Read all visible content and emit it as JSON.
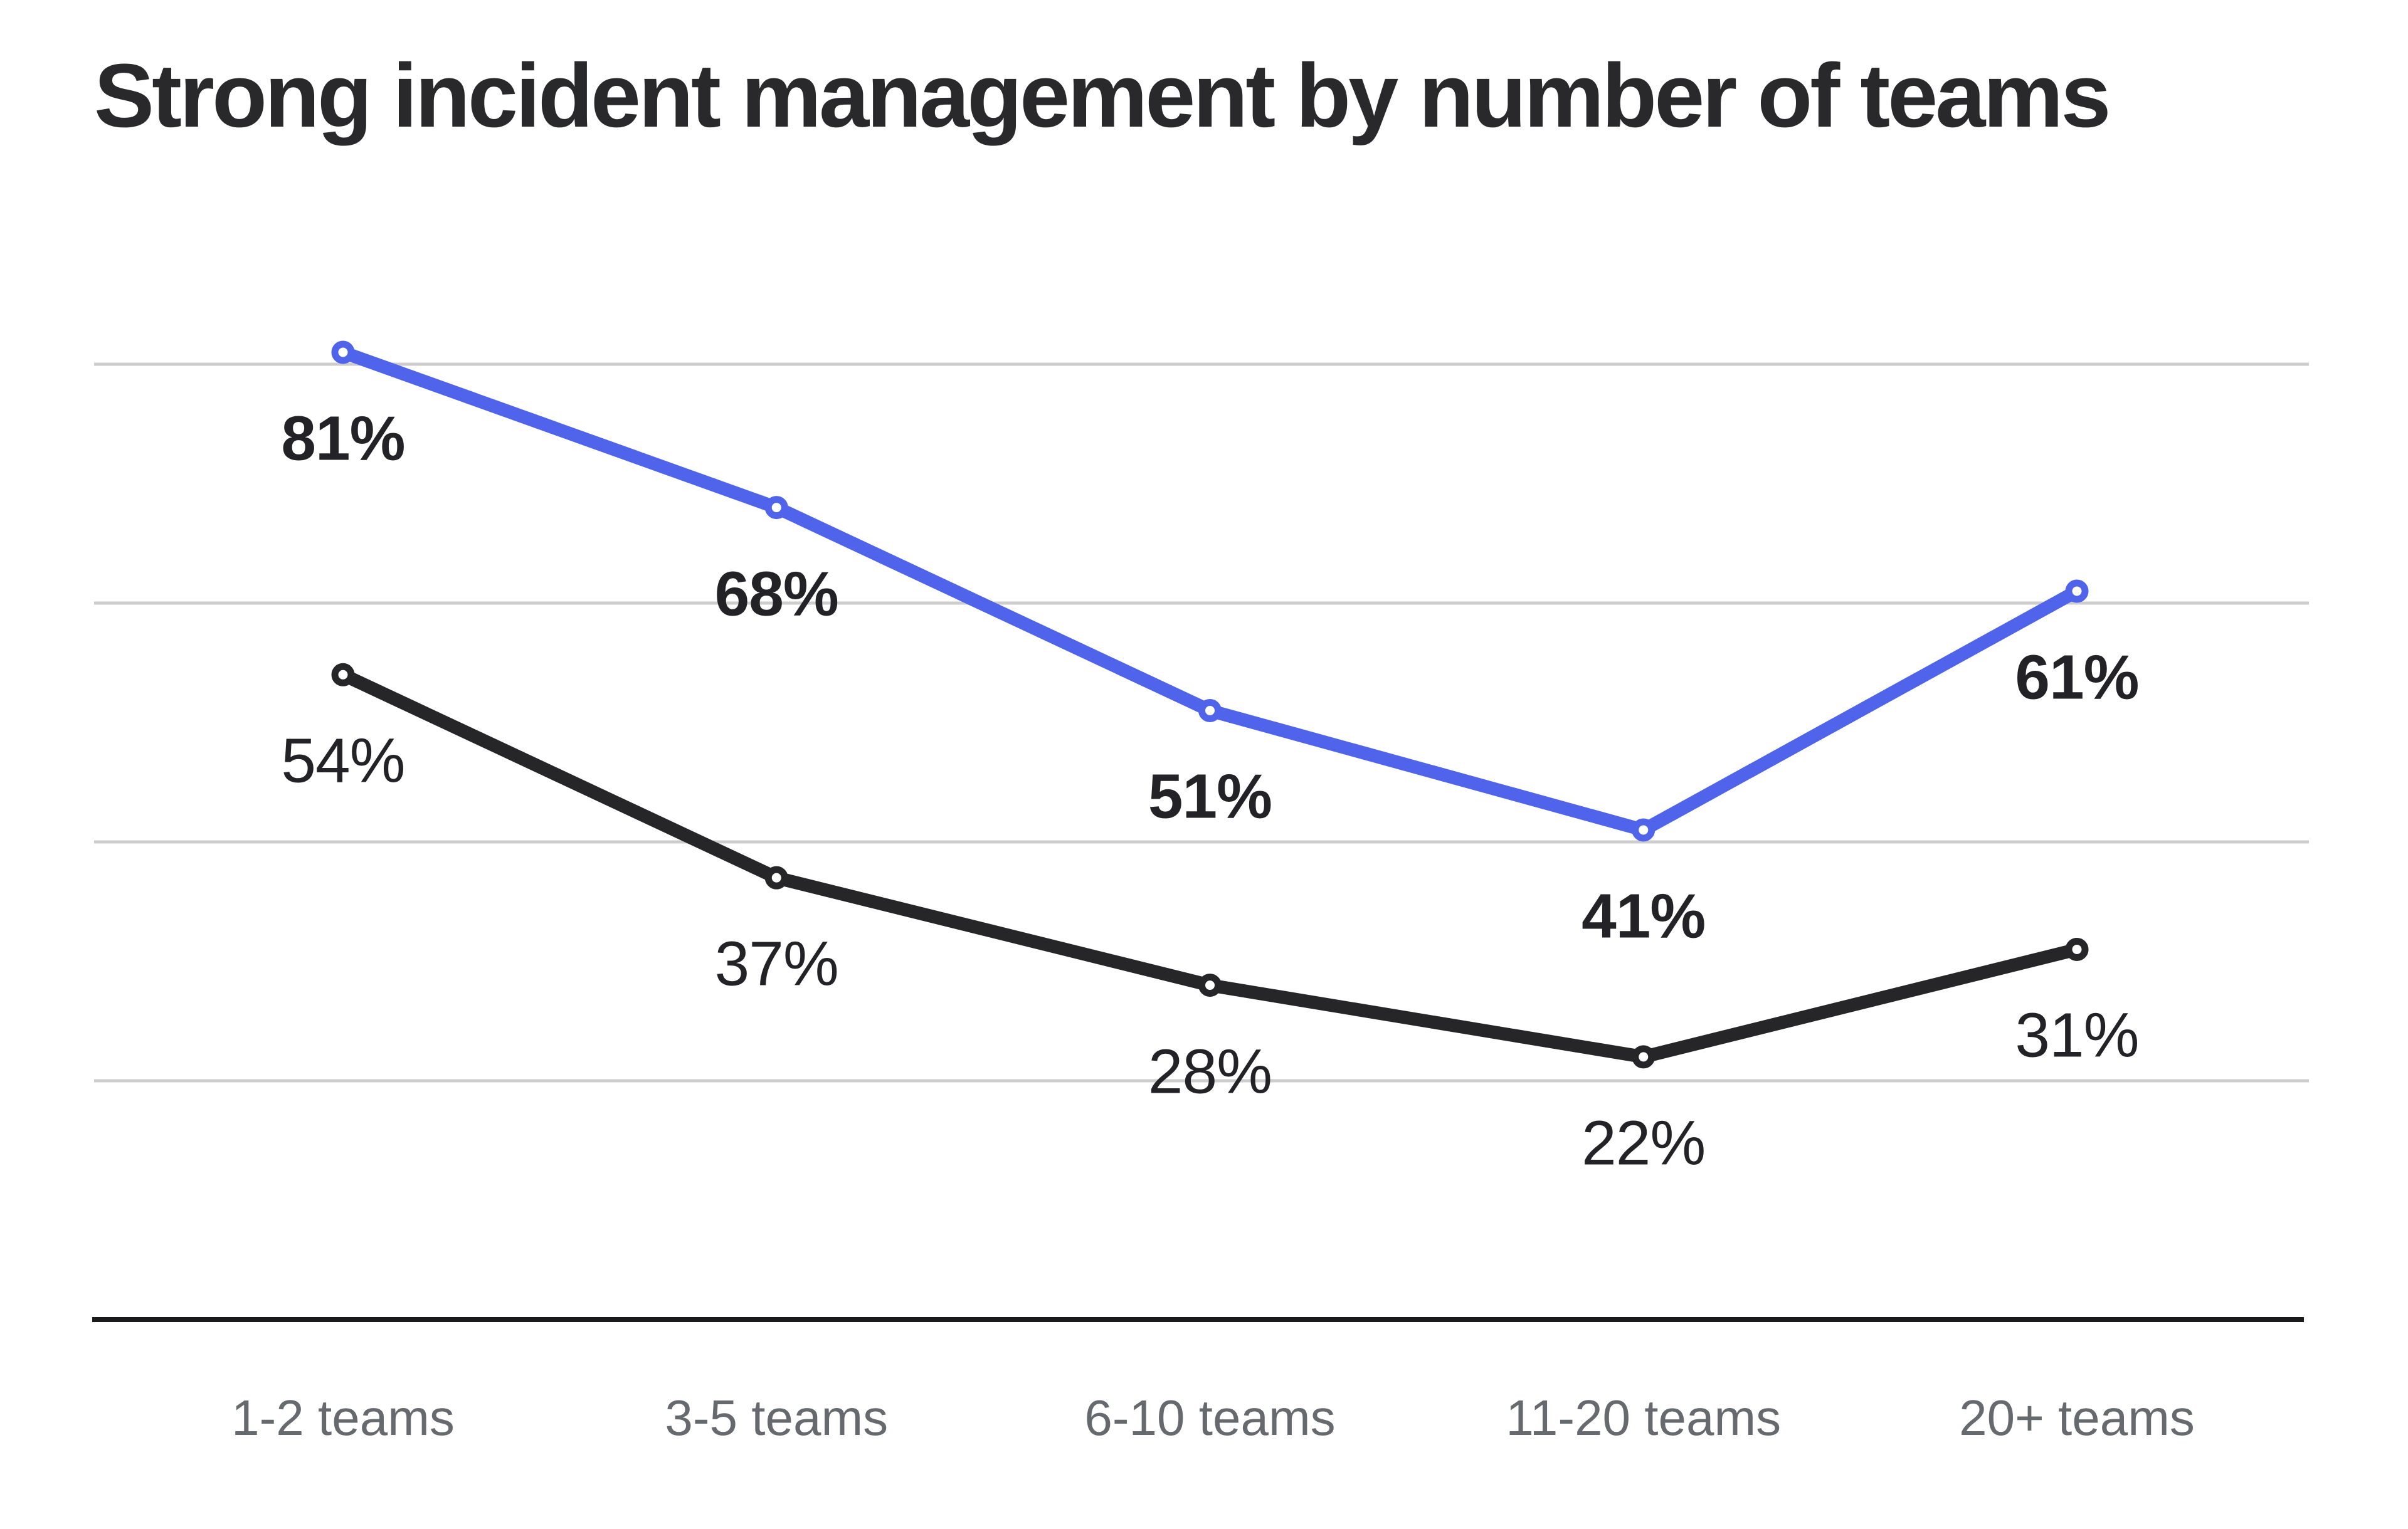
{
  "page": {
    "background": "#ffffff"
  },
  "header": {
    "title": "Strong incident management by number of teams"
  },
  "chart_data": {
    "type": "line",
    "title": "Strong incident management by number of teams",
    "xlabel": "",
    "ylabel": "",
    "categories": [
      "1-2 teams",
      "3-5 teams",
      "6-10 teams",
      "11-20 teams",
      "20+ teams"
    ],
    "series": [
      {
        "name": "blue-line",
        "color": "#5064eb",
        "values": [
          81,
          68,
          51,
          41,
          61
        ],
        "labels": [
          "81%",
          "68%",
          "51%",
          "41%",
          "61%"
        ],
        "label_style": "bold"
      },
      {
        "name": "black-line",
        "color": "#262628",
        "values": [
          54,
          37,
          28,
          22,
          31
        ],
        "labels": [
          "54%",
          "37%",
          "28%",
          "22%",
          "31%"
        ],
        "label_style": "regular"
      }
    ],
    "ylim": [
      0,
      110
    ],
    "y_gridlines": [
      20,
      40,
      60,
      80
    ],
    "grid": true,
    "legend": false,
    "value_labels": true,
    "marker": "open-circle",
    "colors": {
      "gridline": "#cdcdcd",
      "axis": "#1b1b1d",
      "axis_label": "#66696d",
      "data_label": "#232327",
      "title": "#29292c",
      "background": "#ffffff"
    }
  }
}
